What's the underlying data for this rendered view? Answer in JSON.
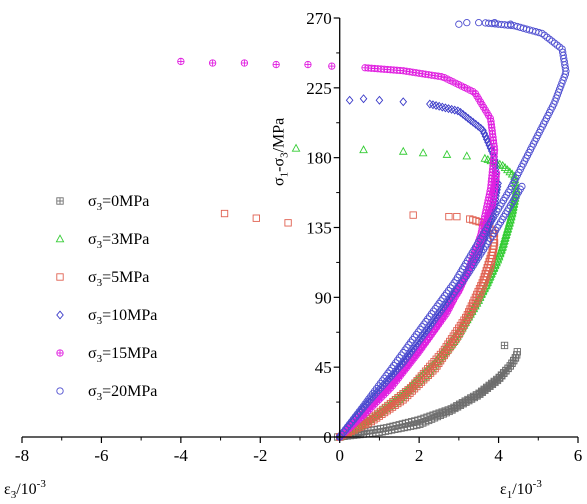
{
  "chart_data": {
    "type": "scatter",
    "title": "",
    "xlabel_left": {
      "base": "ε",
      "sub": "3",
      "suffix": "/10",
      "sup": "-3"
    },
    "xlabel_right": {
      "base": "ε",
      "sub": "1",
      "suffix": "/10",
      "sup": "-3"
    },
    "ylabel": {
      "p1": "σ",
      "s1": "1",
      "mid": "-σ",
      "s2": "3",
      "unit": "/MPa"
    },
    "xlim": [
      -8,
      6
    ],
    "ylim": [
      0,
      270
    ],
    "x_ticks": [
      -8,
      -6,
      -4,
      -2,
      0,
      2,
      4,
      6
    ],
    "y_ticks": [
      0,
      45,
      90,
      135,
      180,
      225,
      270
    ],
    "x_tick_labels": [
      "-8",
      "-6",
      "-4",
      "-2",
      "0",
      "2",
      "4",
      "6"
    ],
    "y_tick_labels": [
      "0",
      "45",
      "90",
      "135",
      "180",
      "225",
      "270"
    ],
    "grid": false,
    "legend_position": "left",
    "series": [
      {
        "name": {
          "base": "σ",
          "sub": "3",
          "rest": "=0MPa"
        },
        "marker": "square-plus",
        "color": "#6e6e6e",
        "axial_peak": [
          4.5,
          55
        ],
        "lateral_curve": [
          [
            -0.05,
            0
          ],
          [
            0.3,
            1
          ],
          [
            1.0,
            3
          ],
          [
            2.0,
            8
          ],
          [
            2.8,
            17
          ],
          [
            3.5,
            27
          ],
          [
            4.0,
            37
          ],
          [
            4.3,
            46
          ],
          [
            4.45,
            52
          ]
        ],
        "axial_curve": [
          [
            0,
            0
          ],
          [
            0.5,
            3
          ],
          [
            1.2,
            6
          ],
          [
            2.0,
            11
          ],
          [
            2.8,
            18
          ],
          [
            3.5,
            28
          ],
          [
            4.0,
            38
          ],
          [
            4.3,
            46
          ],
          [
            4.45,
            52
          ],
          [
            4.48,
            56
          ]
        ],
        "post_peak": [
          [
            4.15,
            59
          ]
        ]
      },
      {
        "name": {
          "base": "σ",
          "sub": "3",
          "rest": "=3MPa"
        },
        "marker": "triangle",
        "color": "#33cc33",
        "lateral_curve": [
          [
            0,
            0
          ],
          [
            0.6,
            8
          ],
          [
            1.4,
            22
          ],
          [
            2.2,
            40
          ],
          [
            2.9,
            62
          ],
          [
            3.5,
            88
          ],
          [
            4.0,
            115
          ],
          [
            4.3,
            140
          ],
          [
            4.45,
            158
          ],
          [
            4.4,
            168
          ],
          [
            4.1,
            175
          ],
          [
            3.6,
            180
          ]
        ],
        "axial_curve": [
          [
            0,
            0
          ],
          [
            0.8,
            12
          ],
          [
            1.6,
            28
          ],
          [
            2.4,
            48
          ],
          [
            3.1,
            72
          ],
          [
            3.7,
            98
          ],
          [
            4.1,
            122
          ],
          [
            4.35,
            145
          ],
          [
            4.45,
            160
          ]
        ],
        "post_peak": [
          [
            3.2,
            181
          ],
          [
            2.7,
            182
          ],
          [
            2.1,
            183
          ],
          [
            1.6,
            184
          ],
          [
            0.6,
            185
          ],
          [
            -1.1,
            186
          ]
        ]
      },
      {
        "name": {
          "base": "σ",
          "sub": "3",
          "rest": "=5MPa"
        },
        "marker": "square",
        "color": "#e06050",
        "lateral_curve": [
          [
            0,
            0
          ],
          [
            0.8,
            10
          ],
          [
            1.6,
            24
          ],
          [
            2.4,
            44
          ],
          [
            3.0,
            66
          ],
          [
            3.5,
            90
          ],
          [
            3.8,
            110
          ],
          [
            3.9,
            125
          ],
          [
            3.85,
            133
          ],
          [
            3.6,
            138
          ],
          [
            3.2,
            141
          ]
        ],
        "axial_curve": [
          [
            0,
            0
          ],
          [
            0.9,
            14
          ],
          [
            1.8,
            32
          ],
          [
            2.6,
            55
          ],
          [
            3.2,
            78
          ],
          [
            3.6,
            100
          ],
          [
            3.85,
            120
          ],
          [
            3.9,
            132
          ]
        ],
        "post_peak": [
          [
            2.95,
            142
          ],
          [
            2.75,
            142
          ],
          [
            1.85,
            143
          ],
          [
            -1.3,
            138
          ],
          [
            -2.1,
            141
          ],
          [
            -2.9,
            144
          ]
        ]
      },
      {
        "name": {
          "base": "σ",
          "sub": "3",
          "rest": "=10MPa"
        },
        "marker": "diamond",
        "color": "#3a3ac8",
        "lateral_curve": [
          [
            0,
            0
          ],
          [
            0.5,
            15
          ],
          [
            1.2,
            35
          ],
          [
            2.0,
            60
          ],
          [
            2.7,
            85
          ],
          [
            3.3,
            110
          ],
          [
            3.7,
            135
          ],
          [
            3.95,
            160
          ],
          [
            3.9,
            180
          ],
          [
            3.6,
            198
          ],
          [
            3.0,
            210
          ],
          [
            2.2,
            215
          ]
        ],
        "axial_curve": [
          [
            0,
            0
          ],
          [
            0.6,
            18
          ],
          [
            1.4,
            40
          ],
          [
            2.2,
            66
          ],
          [
            2.9,
            92
          ],
          [
            3.5,
            118
          ],
          [
            3.85,
            142
          ],
          [
            4.0,
            165
          ]
        ],
        "post_peak": [
          [
            1.6,
            216
          ],
          [
            1.0,
            217
          ],
          [
            0.6,
            218
          ],
          [
            0.25,
            217
          ]
        ]
      },
      {
        "name": {
          "base": "σ",
          "sub": "3",
          "rest": "=15MPa"
        },
        "marker": "circle-plus",
        "color": "#e020e0",
        "lateral_curve": [
          [
            0,
            0
          ],
          [
            0.6,
            14
          ],
          [
            1.3,
            32
          ],
          [
            2.0,
            55
          ],
          [
            2.7,
            80
          ],
          [
            3.2,
            105
          ],
          [
            3.55,
            130
          ],
          [
            3.8,
            160
          ],
          [
            3.9,
            185
          ],
          [
            3.8,
            205
          ],
          [
            3.4,
            222
          ],
          [
            2.6,
            232
          ],
          [
            1.6,
            236
          ],
          [
            0.6,
            238
          ]
        ],
        "axial_curve": [
          [
            0,
            0
          ],
          [
            0.7,
            18
          ],
          [
            1.5,
            40
          ],
          [
            2.3,
            66
          ],
          [
            3.0,
            94
          ],
          [
            3.5,
            122
          ],
          [
            3.85,
            150
          ],
          [
            3.95,
            170
          ]
        ],
        "post_peak": [
          [
            -0.2,
            239
          ],
          [
            -0.8,
            240
          ],
          [
            -1.6,
            240
          ],
          [
            -2.4,
            241
          ],
          [
            -3.2,
            241
          ],
          [
            -4.0,
            242
          ]
        ]
      },
      {
        "name": {
          "base": "σ",
          "sub": "3",
          "rest": "=20MPa"
        },
        "marker": "circle",
        "color": "#4f4fd0",
        "lateral_curve": [
          [
            0,
            0
          ],
          [
            0.6,
            20
          ],
          [
            1.3,
            44
          ],
          [
            2.1,
            72
          ],
          [
            2.9,
            100
          ],
          [
            3.6,
            130
          ],
          [
            4.3,
            160
          ],
          [
            4.9,
            190
          ],
          [
            5.4,
            215
          ],
          [
            5.7,
            235
          ],
          [
            5.6,
            250
          ],
          [
            5.1,
            260
          ],
          [
            4.4,
            265
          ],
          [
            3.6,
            267
          ]
        ],
        "axial_curve": [
          [
            0,
            0
          ],
          [
            0.7,
            22
          ],
          [
            1.6,
            48
          ],
          [
            2.4,
            76
          ],
          [
            3.2,
            104
          ],
          [
            3.9,
            132
          ],
          [
            4.6,
            162
          ]
        ],
        "post_peak": [
          [
            3.0,
            266
          ],
          [
            3.2,
            267
          ],
          [
            3.5,
            267
          ],
          [
            3.9,
            267
          ],
          [
            4.3,
            266
          ]
        ]
      }
    ]
  }
}
